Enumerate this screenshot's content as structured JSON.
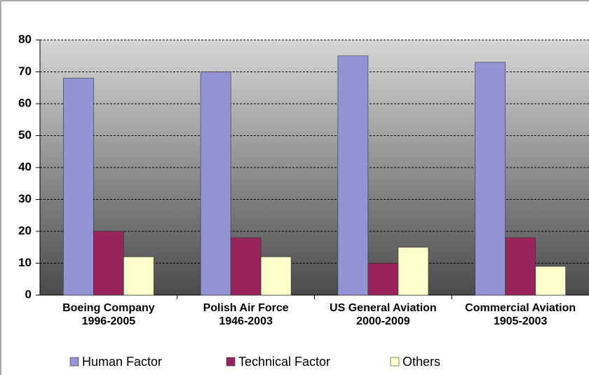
{
  "chart_data": {
    "type": "bar",
    "categories": [
      "Boeing Company\n1996-2005",
      "Polish Air Force\n1946-2003",
      "US General Aviation\n2000-2009",
      "Commercial Aviation\n1905-2003"
    ],
    "series": [
      {
        "name": "Human Factor",
        "color": "#9494d4",
        "values": [
          68,
          70,
          75,
          73
        ]
      },
      {
        "name": "Technical Factor",
        "color": "#99245c",
        "values": [
          20,
          18,
          10,
          18
        ]
      },
      {
        "name": "Others",
        "color": "#ffffcc",
        "values": [
          12,
          12,
          15,
          9
        ]
      }
    ],
    "ylim": [
      0,
      80
    ],
    "yticks": [
      0,
      10,
      20,
      30,
      40,
      50,
      60,
      70,
      80
    ],
    "grid": true,
    "legend": "bottom"
  }
}
